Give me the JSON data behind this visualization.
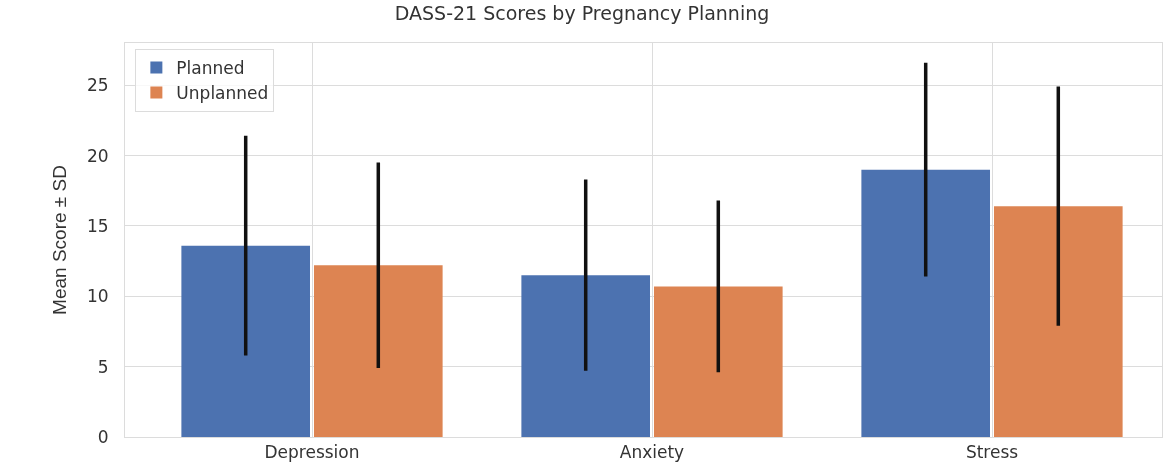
{
  "chart_data": {
    "type": "bar",
    "title": "DASS-21 Scores by Pregnancy Planning",
    "ylabel": "Mean Score ± SD",
    "categories": [
      "Depression",
      "Anxiety",
      "Stress"
    ],
    "series": [
      {
        "name": "Planned",
        "color": "#4c72b0",
        "values": [
          13.6,
          11.5,
          19.0
        ],
        "errors": [
          7.8,
          6.8,
          7.6
        ]
      },
      {
        "name": "Unplanned",
        "color": "#dd8452",
        "values": [
          12.2,
          10.7,
          16.4
        ],
        "errors": [
          7.3,
          6.1,
          8.5
        ]
      }
    ],
    "ylim": [
      0,
      28
    ],
    "yticks": [
      0,
      5,
      10,
      15,
      20,
      25
    ],
    "grid": true,
    "legend": "top left"
  }
}
